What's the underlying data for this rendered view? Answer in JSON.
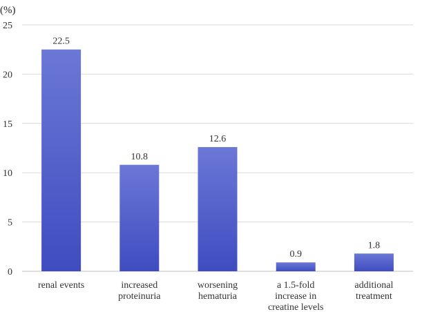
{
  "chart_data": {
    "type": "bar",
    "title": "",
    "xlabel": "",
    "ylabel": "(%)",
    "ylim": [
      0,
      25
    ],
    "yticks": [
      0,
      5,
      10,
      15,
      20,
      25
    ],
    "grid": true,
    "legend": "none",
    "categories": [
      [
        "renal events"
      ],
      [
        "increased",
        "proteinuria"
      ],
      [
        "worsening",
        "hematuria"
      ],
      [
        "a 1.5-fold",
        "increase in",
        "creatine levels"
      ],
      [
        "additional",
        "treatment"
      ]
    ],
    "values": [
      22.5,
      10.8,
      12.6,
      0.9,
      1.8
    ],
    "value_labels": [
      "22.5",
      "10.8",
      "12.6",
      "0.9",
      "1.8"
    ],
    "bar_color_top": "#6b78d6",
    "bar_color_bottom": "#3f4cc0"
  }
}
